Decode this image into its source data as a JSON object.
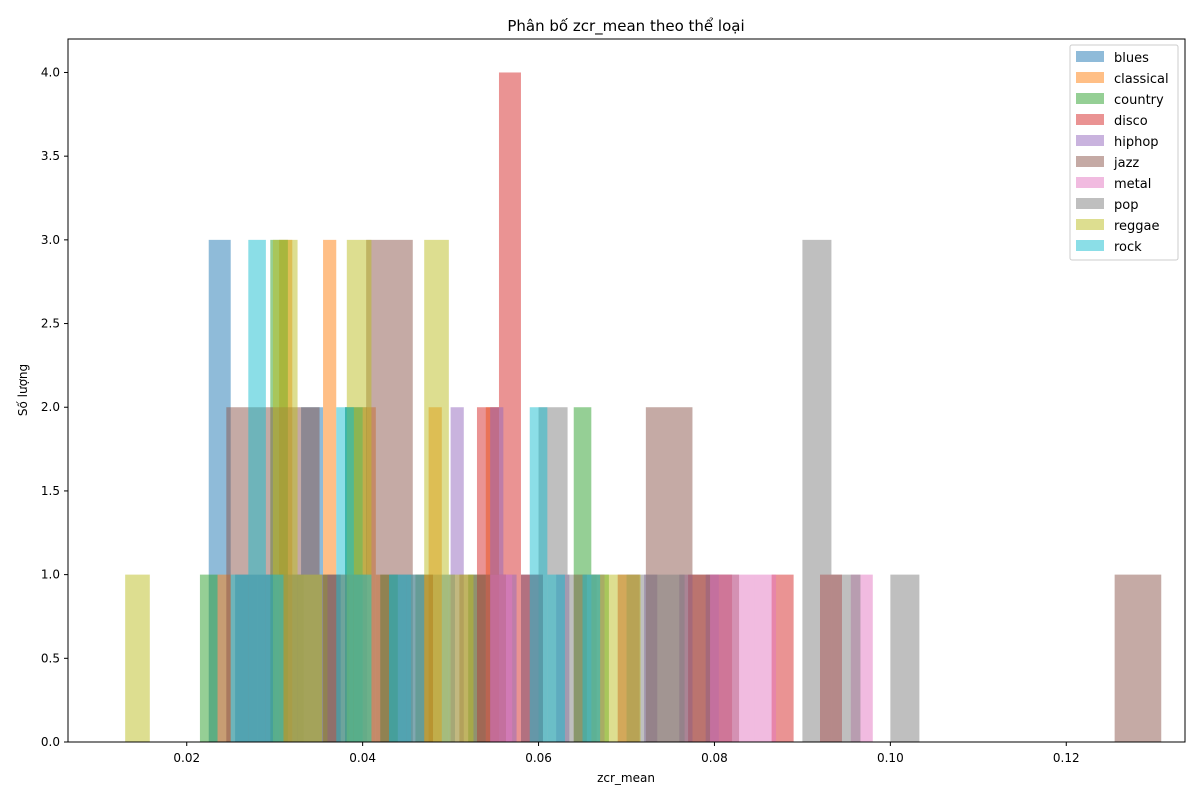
{
  "chart_data": {
    "type": "bar",
    "title": "Phân bố zcr_mean theo thể loại",
    "xlabel": "zcr_mean",
    "ylabel": "Số lượng",
    "xlim": [
      0.0065,
      0.1335
    ],
    "ylim": [
      0,
      4.2
    ],
    "xticks": [
      "0.02",
      "0.04",
      "0.06",
      "0.08",
      "0.10",
      "0.12"
    ],
    "xtick_values": [
      0.02,
      0.04,
      0.06,
      0.08,
      0.1,
      0.12
    ],
    "yticks": [
      "0.0",
      "0.5",
      "1.0",
      "1.5",
      "2.0",
      "2.5",
      "3.0",
      "3.5",
      "4.0"
    ],
    "ytick_values": [
      0,
      0.5,
      1.0,
      1.5,
      2.0,
      2.5,
      3.0,
      3.5,
      4.0
    ],
    "grid": false,
    "legend_position": "top-right",
    "alpha": 0.5,
    "series": [
      {
        "name": "blues",
        "color": "#1f77b4",
        "bars": [
          [
            0.0225,
            0.025,
            3
          ],
          [
            0.0255,
            0.028,
            1
          ],
          [
            0.028,
            0.0305,
            1
          ],
          [
            0.0305,
            0.033,
            1
          ],
          [
            0.033,
            0.0355,
            2
          ],
          [
            0.038,
            0.0405,
            2
          ],
          [
            0.043,
            0.0455,
            1
          ],
          [
            0.048,
            0.0505,
            1
          ],
          [
            0.058,
            0.0605,
            1
          ]
        ]
      },
      {
        "name": "classical",
        "color": "#ff7f0e",
        "bars": [
          [
            0.0235,
            0.025,
            1
          ],
          [
            0.0305,
            0.032,
            3
          ],
          [
            0.0355,
            0.037,
            3
          ],
          [
            0.037,
            0.0385,
            1
          ],
          [
            0.04,
            0.0415,
            2
          ],
          [
            0.0415,
            0.043,
            1
          ],
          [
            0.0475,
            0.049,
            2
          ],
          [
            0.054,
            0.0555,
            2
          ],
          [
            0.064,
            0.0655,
            1
          ]
        ]
      },
      {
        "name": "country",
        "color": "#2ca02c",
        "bars": [
          [
            0.0215,
            0.0235,
            1
          ],
          [
            0.0295,
            0.0315,
            3
          ],
          [
            0.0355,
            0.0375,
            1
          ],
          [
            0.038,
            0.04,
            2
          ],
          [
            0.042,
            0.044,
            1
          ],
          [
            0.046,
            0.048,
            1
          ],
          [
            0.052,
            0.054,
            1
          ],
          [
            0.064,
            0.066,
            2
          ],
          [
            0.066,
            0.068,
            1
          ]
        ]
      },
      {
        "name": "disco",
        "color": "#d62728",
        "bars": [
          [
            0.0455,
            0.048,
            1
          ],
          [
            0.053,
            0.0555,
            2
          ],
          [
            0.0555,
            0.058,
            4
          ],
          [
            0.058,
            0.0605,
            1
          ],
          [
            0.069,
            0.0715,
            1
          ],
          [
            0.077,
            0.0795,
            1
          ],
          [
            0.0795,
            0.082,
            1
          ],
          [
            0.0865,
            0.089,
            1
          ],
          [
            0.092,
            0.0945,
            1
          ]
        ]
      },
      {
        "name": "hiphop",
        "color": "#9467bd",
        "bars": [
          [
            0.036,
            0.0375,
            1
          ],
          [
            0.05,
            0.0515,
            2
          ],
          [
            0.0545,
            0.056,
            2
          ],
          [
            0.056,
            0.0575,
            1
          ],
          [
            0.062,
            0.0635,
            1
          ],
          [
            0.066,
            0.0675,
            1
          ],
          [
            0.072,
            0.0735,
            1
          ],
          [
            0.076,
            0.0775,
            1
          ],
          [
            0.079,
            0.0805,
            1
          ]
        ]
      },
      {
        "name": "jazz",
        "color": "#8c564b",
        "bars": [
          [
            0.0245,
            0.0298,
            2
          ],
          [
            0.0298,
            0.0351,
            2
          ],
          [
            0.0351,
            0.0404,
            1
          ],
          [
            0.0404,
            0.0457,
            3
          ],
          [
            0.051,
            0.0563,
            1
          ],
          [
            0.0722,
            0.0775,
            2
          ],
          [
            0.0775,
            0.0828,
            1
          ],
          [
            0.1255,
            0.1308,
            1
          ]
        ]
      },
      {
        "name": "metal",
        "color": "#e377c2",
        "bars": [
          [
            0.0545,
            0.057,
            1
          ],
          [
            0.0795,
            0.082,
            1
          ],
          [
            0.082,
            0.0845,
            1
          ],
          [
            0.0845,
            0.087,
            1
          ],
          [
            0.0955,
            0.098,
            1
          ]
        ]
      },
      {
        "name": "pop",
        "color": "#7f7f7f",
        "bars": [
          [
            0.03,
            0.0333,
            1
          ],
          [
            0.06,
            0.0633,
            2
          ],
          [
            0.0633,
            0.0666,
            1
          ],
          [
            0.07,
            0.0733,
            1
          ],
          [
            0.0733,
            0.0766,
            1
          ],
          [
            0.09,
            0.0933,
            3
          ],
          [
            0.0933,
            0.0966,
            1
          ],
          [
            0.1,
            0.1033,
            1
          ]
        ]
      },
      {
        "name": "reggae",
        "color": "#bcbd22",
        "bars": [
          [
            0.013,
            0.0158,
            1
          ],
          [
            0.0298,
            0.0326,
            3
          ],
          [
            0.0326,
            0.0354,
            1
          ],
          [
            0.0382,
            0.041,
            3
          ],
          [
            0.047,
            0.0498,
            3
          ],
          [
            0.0498,
            0.0526,
            1
          ],
          [
            0.066,
            0.0688,
            1
          ],
          [
            0.0688,
            0.0716,
            1
          ]
        ]
      },
      {
        "name": "rock",
        "color": "#17becf",
        "bars": [
          [
            0.025,
            0.027,
            1
          ],
          [
            0.027,
            0.029,
            3
          ],
          [
            0.029,
            0.031,
            1
          ],
          [
            0.037,
            0.039,
            2
          ],
          [
            0.039,
            0.041,
            1
          ],
          [
            0.043,
            0.045,
            1
          ],
          [
            0.045,
            0.047,
            1
          ],
          [
            0.059,
            0.061,
            2
          ],
          [
            0.061,
            0.063,
            1
          ],
          [
            0.065,
            0.067,
            1
          ]
        ]
      }
    ]
  }
}
